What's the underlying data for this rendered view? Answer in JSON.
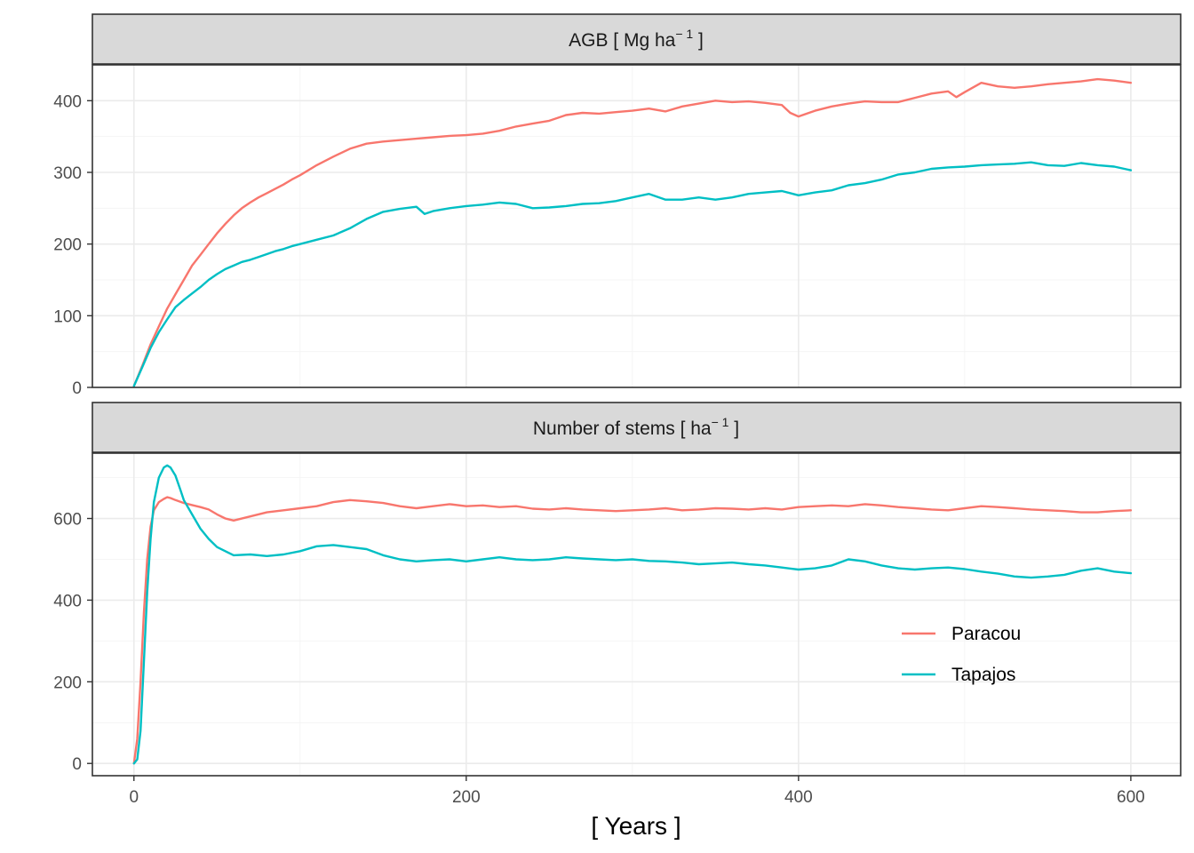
{
  "colors": {
    "paracou": "#F8766D",
    "tapajos": "#00BFC4",
    "strip_fill": "#D9D9D9",
    "strip_border": "#333333",
    "panel_border": "#333333"
  },
  "chart_data": {
    "type": "line",
    "xlabel": "[ Years ]",
    "xlim": [
      0,
      600
    ],
    "xticks": [
      0,
      200,
      400,
      600
    ],
    "legend": {
      "position": "inside-right of lower panel",
      "entries": [
        "Paracou",
        "Tapajos"
      ]
    },
    "grid": true,
    "panels": [
      {
        "title_main": "AGB [ Mg ha",
        "title_sup": "− 1",
        "title_end": " ]",
        "ylim": [
          0,
          450
        ],
        "yticks": [
          0,
          100,
          200,
          300,
          400
        ],
        "series": [
          {
            "name": "Paracou",
            "x": [
              0,
              5,
              10,
              15,
              20,
              25,
              30,
              35,
              40,
              45,
              50,
              55,
              60,
              65,
              70,
              75,
              80,
              85,
              90,
              95,
              100,
              110,
              120,
              130,
              140,
              150,
              160,
              170,
              180,
              190,
              200,
              210,
              220,
              230,
              240,
              250,
              260,
              270,
              280,
              290,
              300,
              310,
              320,
              330,
              340,
              350,
              360,
              370,
              380,
              390,
              395,
              400,
              410,
              420,
              430,
              440,
              450,
              460,
              470,
              480,
              490,
              495,
              500,
              510,
              520,
              530,
              540,
              550,
              560,
              570,
              580,
              590,
              600
            ],
            "y": [
              2,
              30,
              60,
              85,
              110,
              130,
              150,
              170,
              185,
              200,
              215,
              228,
              240,
              250,
              258,
              265,
              271,
              277,
              283,
              290,
              296,
              310,
              322,
              333,
              340,
              343,
              345,
              347,
              349,
              351,
              352,
              354,
              358,
              364,
              368,
              372,
              380,
              383,
              382,
              384,
              386,
              389,
              385,
              392,
              396,
              400,
              398,
              399,
              397,
              394,
              383,
              378,
              386,
              392,
              396,
              399,
              398,
              398,
              404,
              410,
              413,
              405,
              412,
              425,
              420,
              418,
              420,
              423,
              425,
              427,
              430,
              428,
              425
            ]
          },
          {
            "name": "Tapajos",
            "x": [
              0,
              5,
              10,
              15,
              20,
              25,
              30,
              35,
              40,
              45,
              50,
              55,
              60,
              65,
              70,
              75,
              80,
              85,
              90,
              95,
              100,
              110,
              120,
              130,
              140,
              150,
              160,
              170,
              175,
              180,
              190,
              200,
              210,
              220,
              230,
              240,
              250,
              260,
              270,
              280,
              290,
              300,
              310,
              320,
              330,
              340,
              350,
              360,
              370,
              380,
              390,
              400,
              410,
              420,
              430,
              440,
              450,
              460,
              470,
              480,
              490,
              500,
              510,
              520,
              530,
              540,
              550,
              560,
              570,
              580,
              590,
              600
            ],
            "y": [
              2,
              28,
              55,
              77,
              95,
              112,
              122,
              131,
              140,
              150,
              158,
              165,
              170,
              175,
              178,
              182,
              186,
              190,
              193,
              197,
              200,
              206,
              212,
              222,
              235,
              245,
              249,
              252,
              242,
              246,
              250,
              253,
              255,
              258,
              256,
              250,
              251,
              253,
              256,
              257,
              260,
              265,
              270,
              262,
              262,
              265,
              262,
              265,
              270,
              272,
              274,
              268,
              272,
              275,
              282,
              285,
              290,
              297,
              300,
              305,
              307,
              308,
              310,
              311,
              312,
              314,
              310,
              309,
              313,
              310,
              308,
              303
            ]
          }
        ]
      },
      {
        "title_main": "Number of stems [ ha",
        "title_sup": "− 1",
        "title_end": " ]",
        "ylim": [
          -30,
          760
        ],
        "yticks": [
          0,
          200,
          400,
          600
        ],
        "series": [
          {
            "name": "Paracou",
            "x": [
              0,
              2,
              4,
              6,
              8,
              10,
              12,
              15,
              18,
              20,
              22,
              25,
              30,
              35,
              40,
              45,
              50,
              55,
              60,
              70,
              80,
              90,
              100,
              110,
              120,
              130,
              140,
              150,
              160,
              170,
              180,
              190,
              200,
              210,
              220,
              230,
              240,
              250,
              260,
              270,
              280,
              290,
              300,
              310,
              320,
              330,
              340,
              350,
              360,
              370,
              380,
              390,
              400,
              410,
              420,
              430,
              440,
              450,
              460,
              470,
              480,
              490,
              500,
              510,
              520,
              530,
              540,
              550,
              560,
              570,
              580,
              590,
              600
            ],
            "y": [
              0,
              60,
              200,
              370,
              500,
              580,
              620,
              640,
              648,
              652,
              650,
              645,
              638,
              633,
              628,
              622,
              610,
              600,
              595,
              605,
              615,
              620,
              625,
              630,
              640,
              645,
              642,
              638,
              630,
              625,
              630,
              635,
              630,
              632,
              628,
              630,
              624,
              622,
              625,
              622,
              620,
              618,
              620,
              622,
              625,
              620,
              622,
              625,
              624,
              622,
              625,
              622,
              628,
              630,
              632,
              630,
              635,
              632,
              628,
              625,
              622,
              620,
              625,
              630,
              628,
              625,
              622,
              620,
              618,
              615,
              615,
              618,
              620
            ]
          },
          {
            "name": "Tapajos",
            "x": [
              0,
              2,
              4,
              6,
              8,
              10,
              12,
              15,
              18,
              20,
              22,
              25,
              28,
              30,
              35,
              40,
              45,
              50,
              55,
              60,
              70,
              80,
              90,
              100,
              110,
              120,
              130,
              140,
              150,
              160,
              170,
              180,
              190,
              200,
              210,
              220,
              230,
              240,
              250,
              260,
              270,
              280,
              290,
              300,
              310,
              320,
              330,
              340,
              350,
              360,
              370,
              380,
              390,
              400,
              410,
              420,
              430,
              440,
              450,
              460,
              470,
              480,
              490,
              500,
              510,
              520,
              530,
              540,
              550,
              560,
              570,
              580,
              590,
              600
            ],
            "y": [
              0,
              10,
              80,
              250,
              420,
              550,
              640,
              700,
              725,
              730,
              725,
              705,
              670,
              645,
              610,
              575,
              550,
              530,
              520,
              510,
              512,
              508,
              512,
              520,
              532,
              535,
              530,
              525,
              510,
              500,
              495,
              498,
              500,
              495,
              500,
              505,
              500,
              498,
              500,
              505,
              502,
              500,
              498,
              500,
              496,
              495,
              492,
              488,
              490,
              492,
              488,
              485,
              480,
              475,
              478,
              485,
              500,
              495,
              485,
              478,
              475,
              478,
              480,
              476,
              470,
              465,
              458,
              455,
              458,
              462,
              472,
              478,
              470,
              466
            ]
          }
        ]
      }
    ]
  }
}
